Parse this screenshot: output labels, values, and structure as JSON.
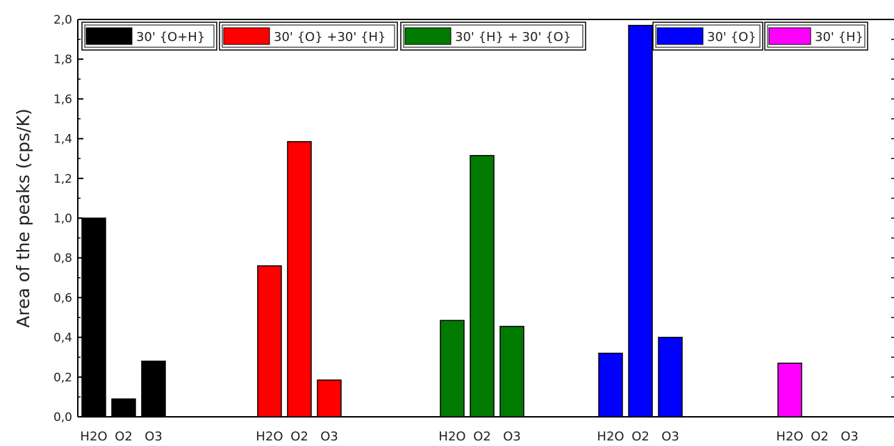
{
  "chart_data": {
    "type": "bar",
    "title": "",
    "xlabel": "",
    "ylabel": "Area of the peaks (cps/K)",
    "ylim": [
      0,
      2.0
    ],
    "yticks": [
      "0,0",
      "0,2",
      "0,4",
      "0,6",
      "0,8",
      "1,0",
      "1,2",
      "1,4",
      "1,6",
      "1,8",
      "2,0"
    ],
    "categories": [
      "H2O",
      "O2",
      "O3"
    ],
    "grid": false,
    "legend_position": "top",
    "groups": [
      {
        "name": "30' {O+H}",
        "color": "#000000",
        "values": [
          1.0,
          0.09,
          0.28
        ]
      },
      {
        "name": "30' {O} +30' {H}",
        "color": "#ff0000",
        "values": [
          0.76,
          1.385,
          0.185
        ]
      },
      {
        "name": "30' {H} + 30' {O}",
        "color": "#007a00",
        "values": [
          0.485,
          1.315,
          0.455
        ]
      },
      {
        "name": "30' {O}",
        "color": "#0000ff",
        "values": [
          0.32,
          1.97,
          0.4
        ]
      },
      {
        "name": "30' {H}",
        "color": "#ff00ff",
        "values": [
          0.27,
          null,
          null
        ]
      }
    ]
  }
}
